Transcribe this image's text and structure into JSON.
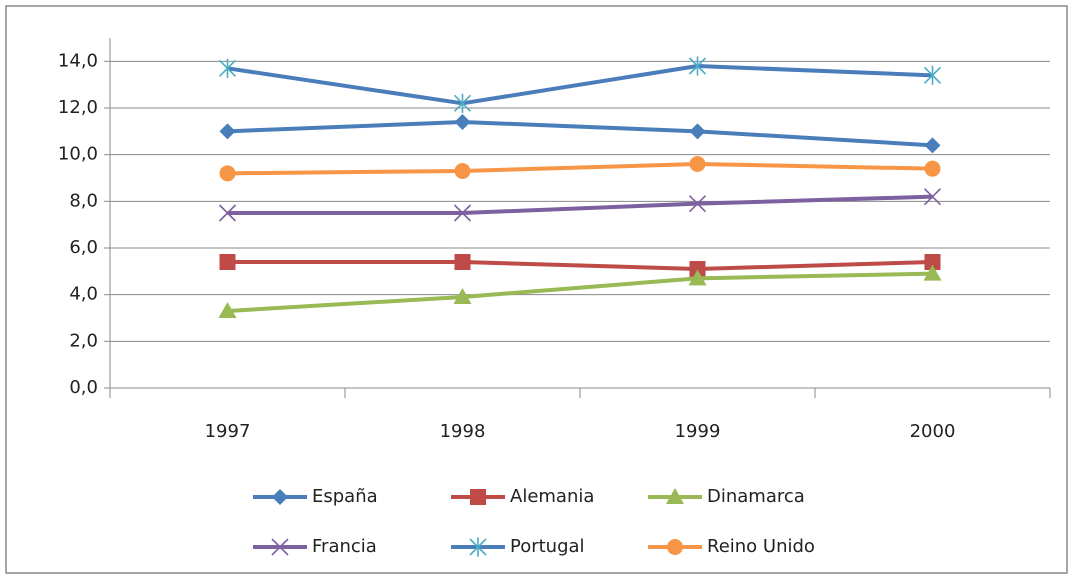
{
  "chart_data": {
    "type": "line",
    "categories": [
      "1997",
      "1998",
      "1999",
      "2000"
    ],
    "series": [
      {
        "name": "España",
        "color": "#4a7ebb",
        "marker": "diamond",
        "values": [
          11.0,
          11.4,
          11.0,
          10.4
        ]
      },
      {
        "name": "Alemania",
        "color": "#be4b48",
        "marker": "square",
        "values": [
          5.4,
          5.4,
          5.1,
          5.4
        ]
      },
      {
        "name": "Dinamarca",
        "color": "#98b954",
        "marker": "triangle",
        "values": [
          3.3,
          3.9,
          4.7,
          4.9
        ]
      },
      {
        "name": "Francia",
        "color": "#7d60a0",
        "marker": "x",
        "values": [
          7.5,
          7.5,
          7.9,
          8.2
        ]
      },
      {
        "name": "Portugal",
        "color": "#4a7ebb",
        "marker": "asterisk",
        "values": [
          13.7,
          12.2,
          13.8,
          13.4
        ]
      },
      {
        "name": "Reino Unido",
        "color": "#f79646",
        "marker": "circle",
        "values": [
          9.2,
          9.3,
          9.6,
          9.4
        ]
      }
    ],
    "ylim": [
      0,
      15
    ],
    "yticks": [
      {
        "value": 0,
        "label": "0,0"
      },
      {
        "value": 2,
        "label": "2,0"
      },
      {
        "value": 4,
        "label": "4,0"
      },
      {
        "value": 6,
        "label": "6,0"
      },
      {
        "value": 8,
        "label": "8,0"
      },
      {
        "value": 10,
        "label": "10,0"
      },
      {
        "value": 12,
        "label": "12,0"
      },
      {
        "value": 14,
        "label": "14,0"
      }
    ],
    "grid": true,
    "legend": "bottom"
  }
}
